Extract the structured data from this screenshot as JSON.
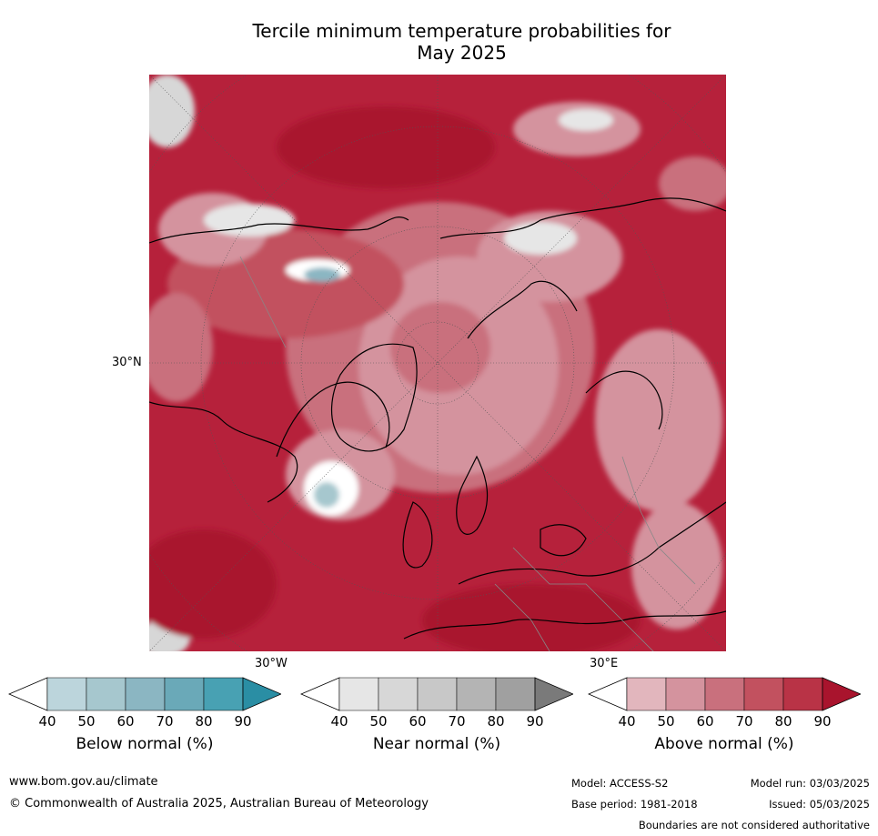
{
  "title_line1": "Tercile minimum temperature probabilities for",
  "title_line2": "May 2025",
  "map": {
    "projection": "north-polar-stereographic",
    "labels": {
      "lat_30n": "30°N",
      "lon_30w": "30°W",
      "lon_30e": "30°E"
    }
  },
  "colorbars": [
    {
      "caption": "Below normal (%)",
      "ticks": [
        "40",
        "50",
        "60",
        "70",
        "80",
        "90"
      ],
      "colors": [
        "#ffffff",
        "#bcd5dc",
        "#a6c7ce",
        "#8bb6c2",
        "#6aa9b8",
        "#48a1b3",
        "#2a8ea4"
      ]
    },
    {
      "caption": "Near normal (%)",
      "ticks": [
        "40",
        "50",
        "60",
        "70",
        "80",
        "90"
      ],
      "colors": [
        "#ffffff",
        "#e6e6e6",
        "#d7d7d7",
        "#c8c8c8",
        "#b4b4b4",
        "#a0a0a0",
        "#7a7a7a"
      ]
    },
    {
      "caption": "Above normal (%)",
      "ticks": [
        "40",
        "50",
        "60",
        "70",
        "80",
        "90"
      ],
      "colors": [
        "#ffffff",
        "#e2b6bd",
        "#d4939e",
        "#c9707d",
        "#c2515f",
        "#b93346",
        "#a9142d"
      ]
    }
  ],
  "footer": {
    "url": "www.bom.gov.au/climate",
    "copyright": "© Commonwealth of Australia 2025, Australian Bureau of Meteorology",
    "model": "Model: ACCESS-S2",
    "base_period": "Base period: 1981-2018",
    "model_run": "Model run: 03/03/2025",
    "issued": "Issued: 05/03/2025",
    "disclaimer": "Boundaries are not considered authoritative"
  }
}
